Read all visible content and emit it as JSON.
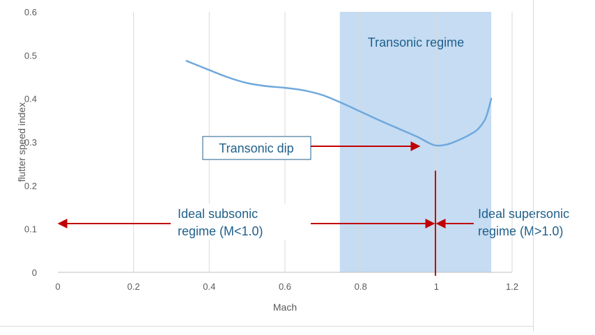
{
  "chart_data": {
    "type": "line",
    "xlabel": "Mach",
    "ylabel": "flutter speed index",
    "xlim": [
      0,
      1.2
    ],
    "ylim": [
      0,
      0.6
    ],
    "x_ticks": [
      0,
      0.2,
      0.4,
      0.6,
      0.8,
      1.0,
      1.2
    ],
    "x_tick_labels": [
      "0",
      "0.2",
      "0.4",
      "0.6",
      "0.8",
      "1",
      "1.2"
    ],
    "y_ticks": [
      0,
      0.1,
      0.2,
      0.3,
      0.4,
      0.5,
      0.6
    ],
    "y_tick_labels": [
      "0",
      "0.1",
      "0.2",
      "0.3",
      "0.4",
      "0.5",
      "0.6"
    ],
    "grid": "vertical",
    "series": [
      {
        "color": "#6fa8dc",
        "x": [
          0.34,
          0.4,
          0.45,
          0.5,
          0.55,
          0.6,
          0.65,
          0.7,
          0.75,
          0.8,
          0.85,
          0.9,
          0.95,
          0.98,
          1.0,
          1.03,
          1.06,
          1.09,
          1.11,
          1.13,
          1.145
        ],
        "y": [
          0.487,
          0.466,
          0.449,
          0.436,
          0.429,
          0.425,
          0.419,
          0.408,
          0.39,
          0.37,
          0.35,
          0.331,
          0.312,
          0.298,
          0.292,
          0.295,
          0.305,
          0.318,
          0.33,
          0.355,
          0.4
        ]
      }
    ],
    "regions": [
      {
        "label": "Transonic regime",
        "x_start": 0.745,
        "x_end": 1.145,
        "color": "#c5dcf3"
      }
    ],
    "annotations": {
      "dip": {
        "label": "Transonic dip",
        "arrow_to": [
          0.96,
          0.292
        ]
      },
      "subsonic": {
        "label_line1": "Ideal subsonic",
        "label_line2": "regime (M<1.0)"
      },
      "supersonic": {
        "label_line1": "Ideal supersonic",
        "label_line2": "regime (M>1.0)"
      },
      "divider_x": 1.0,
      "arrow_y": 0.115,
      "arrow_color": "#c00000",
      "text_color": "#1f5f8b"
    }
  }
}
